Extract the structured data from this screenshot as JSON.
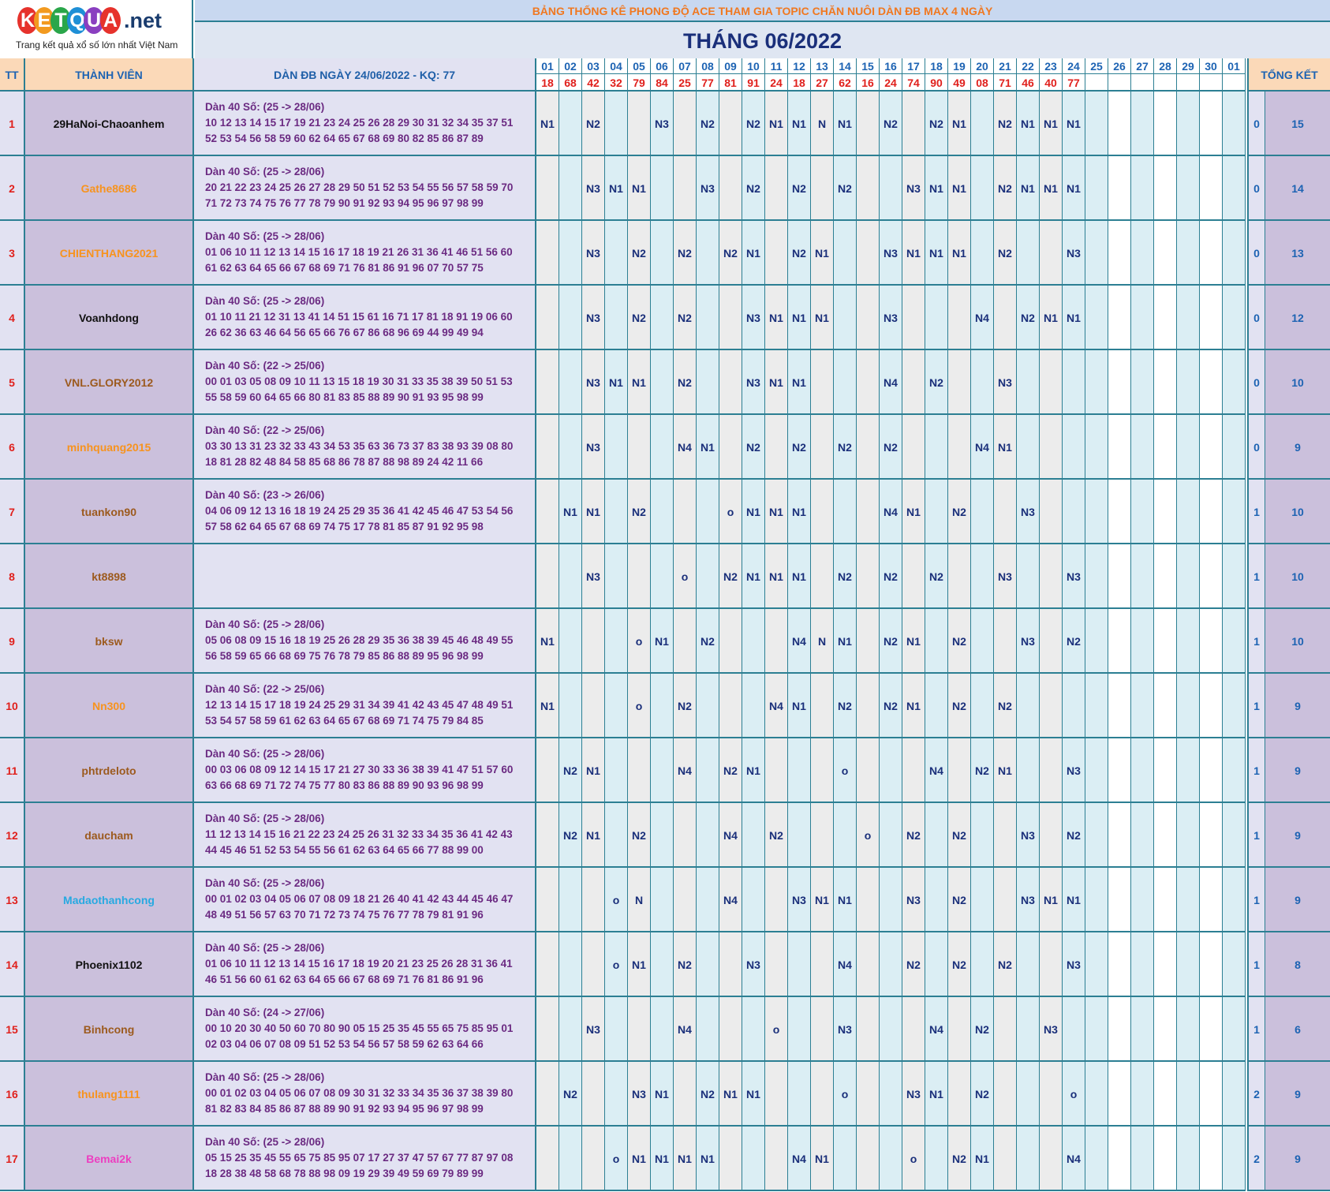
{
  "logo": {
    "letters": [
      "K",
      "E",
      "T",
      "Q",
      "U",
      "A"
    ],
    "letter_colors": [
      "#e6322c",
      "#f29a1f",
      "#2aa64a",
      "#1e8fd6",
      "#8a3fc0",
      "#e6322c"
    ],
    "suffix": ".net",
    "tagline": "Trang kết quả xổ số lớn nhất Việt Nam"
  },
  "banner": "BẢNG THỐNG KÊ PHONG ĐỘ ACE THAM GIA TOPIC CHĂN NUÔI DÀN ĐB MAX 4 NGÀY",
  "month_title": "THÁNG 06/2022",
  "headers": {
    "tt": "TT",
    "member": "THÀNH VIÊN",
    "dan": "DÀN ĐB NGÀY 24/06/2022 - KQ: 77",
    "total": "TỔNG KẾT"
  },
  "days": [
    "01",
    "02",
    "03",
    "04",
    "05",
    "06",
    "07",
    "08",
    "09",
    "10",
    "11",
    "12",
    "13",
    "14",
    "15",
    "16",
    "17",
    "18",
    "19",
    "20",
    "21",
    "22",
    "23",
    "24",
    "25",
    "26",
    "27",
    "28",
    "29",
    "30",
    "01"
  ],
  "results": [
    "18",
    "68",
    "42",
    "32",
    "79",
    "84",
    "25",
    "77",
    "81",
    "91",
    "24",
    "18",
    "27",
    "62",
    "16",
    "24",
    "74",
    "90",
    "49",
    "08",
    "71",
    "46",
    "40",
    "77",
    "",
    "",
    "",
    "",
    "",
    "",
    ""
  ],
  "colors": {
    "name_black": "#111111",
    "name_orange": "#f7931e",
    "name_brown": "#9c5a1e",
    "name_cyan": "#27a9e1",
    "name_pink": "#ec3ec0",
    "cell_white": "#ffffff",
    "cell_gray": "#ececec",
    "cell_blue": "#dbeef4"
  },
  "rows": [
    {
      "tt": "1",
      "name": "29HaNoi-Chaoanhem",
      "color": "#111111",
      "dan1": "Dàn 40 Số: (25 -> 28/06)",
      "dan2": "10 12 13 14 15 17 19 21 23 24 25 26 28 29 30 31 32 34 35 37 51",
      "dan3": "52 53 54 56 58 59 60 62 64 65 67 68 69 80 82 85 86 87 89",
      "a": "0",
      "b": "15",
      "marks": [
        "N1",
        "",
        "N2",
        "",
        "",
        "N3",
        "",
        "N2",
        "",
        "N2",
        "N1",
        "N1",
        "N",
        "N1",
        "",
        "N2",
        "",
        "N2",
        "N1",
        "",
        "N2",
        "N1",
        "N1",
        "N1",
        "",
        "",
        "",
        "",
        "",
        "",
        ""
      ]
    },
    {
      "tt": "2",
      "name": "Gathe8686",
      "color": "#f7931e",
      "dan1": "Dàn 40 Số: (25 -> 28/06)",
      "dan2": "20 21 22 23 24 25 26 27 28 29 50 51 52 53 54 55 56 57 58 59 70",
      "dan3": "71 72 73 74 75 76 77 78 79 90 91 92 93 94 95 96 97 98 99",
      "a": "0",
      "b": "14",
      "marks": [
        "",
        "",
        "N3",
        "N1",
        "N1",
        "",
        "",
        "N3",
        "",
        "N2",
        "",
        "N2",
        "",
        "N2",
        "",
        "",
        "N3",
        "N1",
        "N1",
        "",
        "N2",
        "N1",
        "N1",
        "N1",
        "",
        "",
        "",
        "",
        "",
        "",
        ""
      ]
    },
    {
      "tt": "3",
      "name": "CHIENTHANG2021",
      "color": "#f7931e",
      "dan1": "Dàn 40 Số: (25 -> 28/06)",
      "dan2": "01 06 10 11 12 13 14 15 16 17 18 19 21 26 31 36 41 46 51 56 60",
      "dan3": "61 62 63 64 65 66 67 68 69 71 76 81 86 91 96 07 70 57 75",
      "a": "0",
      "b": "13",
      "marks": [
        "",
        "",
        "N3",
        "",
        "N2",
        "",
        "N2",
        "",
        "N2",
        "N1",
        "",
        "N2",
        "N1",
        "",
        "",
        "N3",
        "N1",
        "N1",
        "N1",
        "",
        "N2",
        "",
        "",
        "N3",
        "",
        "",
        "",
        "",
        "",
        "",
        ""
      ]
    },
    {
      "tt": "4",
      "name": "Voanhdong",
      "color": "#111111",
      "dan1": "Dàn 40 Số: (25 -> 28/06)",
      "dan2": "01 10 11 21 12 31 13 41 14 51 15 61 16 71 17 81 18 91 19 06 60",
      "dan3": "26 62 36 63 46 64 56 65 66 76 67 86 68 96 69 44 99 49 94",
      "a": "0",
      "b": "12",
      "marks": [
        "",
        "",
        "N3",
        "",
        "N2",
        "",
        "N2",
        "",
        "",
        "N3",
        "N1",
        "N1",
        "N1",
        "",
        "",
        "N3",
        "",
        "",
        "",
        "N4",
        "",
        "N2",
        "N1",
        "N1",
        "",
        "",
        "",
        "",
        "",
        "",
        ""
      ]
    },
    {
      "tt": "5",
      "name": "VNL.GLORY2012",
      "color": "#9c5a1e",
      "dan1": "Dàn 40 Số: (22 -> 25/06)",
      "dan2": "00 01 03 05 08 09 10 11 13 15 18 19 30 31 33 35 38 39 50 51 53",
      "dan3": "55 58 59 60 64 65 66 80 81 83 85 88 89 90 91 93 95 98 99",
      "a": "0",
      "b": "10",
      "marks": [
        "",
        "",
        "N3",
        "N1",
        "N1",
        "",
        "N2",
        "",
        "",
        "N3",
        "N1",
        "N1",
        "",
        "",
        "",
        "N4",
        "",
        "N2",
        "",
        "",
        "N3",
        "",
        "",
        "",
        "",
        "",
        "",
        "",
        "",
        "",
        ""
      ]
    },
    {
      "tt": "6",
      "name": "minhquang2015",
      "color": "#f7931e",
      "dan1": "Dàn 40 Số: (22 -> 25/06)",
      "dan2": "03 30 13 31 23 32 33 43 34 53 35 63 36 73 37 83 38 93 39 08 80",
      "dan3": "18 81 28 82 48 84 58 85 68 86 78 87 88 98 89 24 42 11 66",
      "a": "0",
      "b": "9",
      "marks": [
        "",
        "",
        "N3",
        "",
        "",
        "",
        "N4",
        "N1",
        "",
        "N2",
        "",
        "N2",
        "",
        "N2",
        "",
        "N2",
        "",
        "",
        "",
        "N4",
        "N1",
        "",
        "",
        "",
        "",
        "",
        "",
        "",
        "",
        "",
        ""
      ]
    },
    {
      "tt": "7",
      "name": "tuankon90",
      "color": "#9c5a1e",
      "dan1": "Dàn 40 Số: (23 -> 26/06)",
      "dan2": "04 06 09 12 13 16 18 19 24 25 29 35 36 41 42 45 46 47 53 54 56",
      "dan3": "57 58 62 64 65 67 68 69 74 75 17 78 81 85 87 91 92 95 98",
      "a": "1",
      "b": "10",
      "marks": [
        "",
        "N1",
        "N1",
        "",
        "N2",
        "",
        "",
        "",
        "o",
        "N1",
        "N1",
        "N1",
        "",
        "",
        "",
        "N4",
        "N1",
        "",
        "N2",
        "",
        "",
        "N3",
        "",
        "",
        "",
        "",
        "",
        "",
        "",
        "",
        ""
      ]
    },
    {
      "tt": "8",
      "name": "kt8898",
      "color": "#9c5a1e",
      "dan1": "",
      "dan2": "",
      "dan3": "",
      "a": "1",
      "b": "10",
      "marks": [
        "",
        "",
        "N3",
        "",
        "",
        "",
        "o",
        "",
        "N2",
        "N1",
        "N1",
        "N1",
        "",
        "N2",
        "",
        "N2",
        "",
        "N2",
        "",
        "",
        "N3",
        "",
        "",
        "N3",
        "",
        "",
        "",
        "",
        "",
        "",
        ""
      ]
    },
    {
      "tt": "9",
      "name": "bksw",
      "color": "#9c5a1e",
      "dan1": "Dàn 40 Số: (25 -> 28/06)",
      "dan2": "05 06 08 09 15 16 18 19 25 26 28 29 35 36 38 39 45 46 48 49 55",
      "dan3": "56 58 59 65 66 68 69 75 76 78 79 85 86 88 89 95 96 98 99",
      "a": "1",
      "b": "10",
      "marks": [
        "N1",
        "",
        "",
        "",
        "o",
        "N1",
        "",
        "N2",
        "",
        "",
        "",
        "N4",
        "N",
        "N1",
        "",
        "N2",
        "N1",
        "",
        "N2",
        "",
        "",
        "N3",
        "",
        "N2",
        "",
        "",
        "",
        "",
        "",
        "",
        ""
      ]
    },
    {
      "tt": "10",
      "name": "Nn300",
      "color": "#f7931e",
      "dan1": "Dàn 40 Số: (22 -> 25/06)",
      "dan2": "12 13 14 15 17 18 19 24 25 29 31 34 39 41 42 43 45 47 48 49 51",
      "dan3": "53 54 57 58 59 61 62 63 64 65 67 68 69 71 74 75 79 84 85",
      "a": "1",
      "b": "9",
      "marks": [
        "N1",
        "",
        "",
        "",
        "o",
        "",
        "N2",
        "",
        "",
        "",
        "N4",
        "N1",
        "",
        "N2",
        "",
        "N2",
        "N1",
        "",
        "N2",
        "",
        "N2",
        "",
        "",
        "",
        "",
        "",
        "",
        "",
        "",
        "",
        ""
      ]
    },
    {
      "tt": "11",
      "name": "phtrdeloto",
      "color": "#9c5a1e",
      "dan1": "Dàn 40 Số: (25 -> 28/06)",
      "dan2": "00 03 06 08 09 12 14 15 17 21 27 30 33 36 38 39 41 47 51 57 60",
      "dan3": "63 66 68 69 71 72 74 75 77 80 83 86 88 89 90 93 96 98 99",
      "a": "1",
      "b": "9",
      "marks": [
        "",
        "N2",
        "N1",
        "",
        "",
        "",
        "N4",
        "",
        "N2",
        "N1",
        "",
        "",
        "",
        "o",
        "",
        "",
        "",
        "N4",
        "",
        "N2",
        "N1",
        "",
        "",
        "N3",
        "",
        "",
        "",
        "",
        "",
        "",
        ""
      ]
    },
    {
      "tt": "12",
      "name": "daucham",
      "color": "#9c5a1e",
      "dan1": "Dàn 40 Số: (25 -> 28/06)",
      "dan2": "11 12 13 14 15 16 21 22 23 24 25 26 31 32 33 34 35 36 41 42 43",
      "dan3": "44 45 46 51 52 53 54 55 56 61 62 63 64 65 66 77 88 99 00",
      "a": "1",
      "b": "9",
      "marks": [
        "",
        "N2",
        "N1",
        "",
        "N2",
        "",
        "",
        "",
        "N4",
        "",
        "N2",
        "",
        "",
        "",
        "o",
        "",
        "N2",
        "",
        "N2",
        "",
        "",
        "N3",
        "",
        "N2",
        "",
        "",
        "",
        "",
        "",
        "",
        ""
      ]
    },
    {
      "tt": "13",
      "name": "Madaothanhcong",
      "color": "#27a9e1",
      "dan1": "Dàn 40 Số: (25 -> 28/06)",
      "dan2": "00 01 02 03 04 05 06 07 08 09 18 21 26 40 41 42 43 44 45 46 47",
      "dan3": "48 49 51 56 57 63 70 71 72 73 74 75 76 77 78 79 81 91 96",
      "a": "1",
      "b": "9",
      "marks": [
        "",
        "",
        "",
        "o",
        "N",
        "",
        "",
        "",
        "N4",
        "",
        "",
        "N3",
        "N1",
        "N1",
        "",
        "",
        "N3",
        "",
        "N2",
        "",
        "",
        "N3",
        "N1",
        "N1",
        "",
        "",
        "",
        "",
        "",
        "",
        ""
      ]
    },
    {
      "tt": "14",
      "name": "Phoenix1102",
      "color": "#111111",
      "dan1": "Dàn 40 Số: (25 -> 28/06)",
      "dan2": "01 06 10 11 12 13 14 15 16 17 18 19 20 21 23 25 26 28 31 36 41",
      "dan3": "46 51 56 60 61 62 63 64 65 66 67 68 69 71 76 81 86 91 96",
      "a": "1",
      "b": "8",
      "marks": [
        "",
        "",
        "",
        "o",
        "N1",
        "",
        "N2",
        "",
        "",
        "N3",
        "",
        "",
        "",
        "N4",
        "",
        "",
        "N2",
        "",
        "N2",
        "",
        "N2",
        "",
        "",
        "N3",
        "",
        "",
        "",
        "",
        "",
        "",
        ""
      ]
    },
    {
      "tt": "15",
      "name": "Binhcong",
      "color": "#9c5a1e",
      "dan1": "Dàn 40 Số: (24 -> 27/06)",
      "dan2": "00 10 20 30 40 50 60 70 80 90 05 15 25 35 45 55 65 75 85 95 01",
      "dan3": "02 03 04 06 07 08 09 51 52 53 54 56 57 58 59 62 63 64 66",
      "a": "1",
      "b": "6",
      "marks": [
        "",
        "",
        "N3",
        "",
        "",
        "",
        "N4",
        "",
        "",
        "",
        "o",
        "",
        "",
        "N3",
        "",
        "",
        "",
        "N4",
        "",
        "N2",
        "",
        "",
        "N3",
        "",
        "",
        "",
        "",
        "",
        "",
        "",
        ""
      ]
    },
    {
      "tt": "16",
      "name": "thulang1111",
      "color": "#f7931e",
      "dan1": "Dàn 40 Số: (25 -> 28/06)",
      "dan2": "00 01 02 03 04 05 06 07 08 09 30 31 32 33 34 35 36 37 38 39 80",
      "dan3": "81 82 83 84 85 86 87 88 89 90 91 92 93 94 95 96 97 98 99",
      "a": "2",
      "b": "9",
      "marks": [
        "",
        "N2",
        "",
        "",
        "N3",
        "N1",
        "",
        "N2",
        "N1",
        "N1",
        "",
        "",
        "",
        "o",
        "",
        "",
        "N3",
        "N1",
        "",
        "N2",
        "",
        "",
        "",
        "o",
        "",
        "",
        "",
        "",
        "",
        "",
        ""
      ]
    },
    {
      "tt": "17",
      "name": "Bemai2k",
      "color": "#ec3ec0",
      "dan1": "Dàn 40 Số: (25 -> 28/06)",
      "dan2": "05 15 25 35 45 55 65 75 85 95 07 17 27 37 47 57 67 77 87 97 08",
      "dan3": "18 28 38 48 58 68 78 88 98 09 19 29 39 49 59 69 79 89 99",
      "a": "2",
      "b": "9",
      "marks": [
        "",
        "",
        "",
        "o",
        "N1",
        "N1",
        "N1",
        "N1",
        "",
        "",
        "",
        "N4",
        "N1",
        "",
        "",
        "",
        "o",
        "",
        "N2",
        "N1",
        "",
        "",
        "",
        "N4",
        "",
        "",
        "",
        "",
        "",
        "",
        ""
      ]
    }
  ]
}
